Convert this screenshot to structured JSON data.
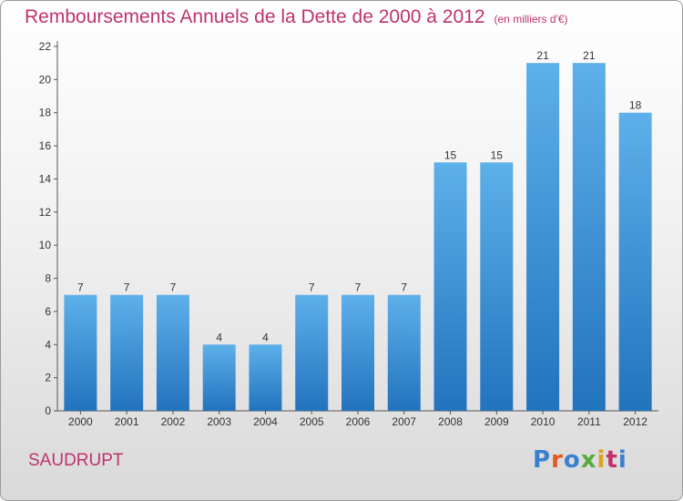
{
  "chart_data": {
    "type": "bar",
    "title": "Remboursements Annuels de la Dette de 2000 à 2012",
    "unit_note": "(en milliers d'€)",
    "categories": [
      "2000",
      "2001",
      "2002",
      "2003",
      "2004",
      "2005",
      "2006",
      "2007",
      "2008",
      "2009",
      "2010",
      "2011",
      "2012"
    ],
    "values": [
      7,
      7,
      7,
      4,
      4,
      7,
      7,
      7,
      15,
      15,
      21,
      21,
      18
    ],
    "xlabel": "",
    "ylabel": "",
    "ylim": [
      0,
      22
    ],
    "yticks": [
      0,
      2,
      4,
      6,
      8,
      10,
      12,
      14,
      16,
      18,
      20,
      22
    ],
    "grid": false,
    "bar_color": "#3a8fd6",
    "data_labels": true
  },
  "footer": {
    "commune": "SAUDRUPT",
    "logo_text": "Proxiti"
  },
  "colors": {
    "title": "#c0326e",
    "logo": [
      "#3a7fd0",
      "#e05a2a",
      "#3a7fd0",
      "#5aaa3a",
      "#e0a020",
      "#c0326e",
      "#3a7fd0"
    ]
  }
}
